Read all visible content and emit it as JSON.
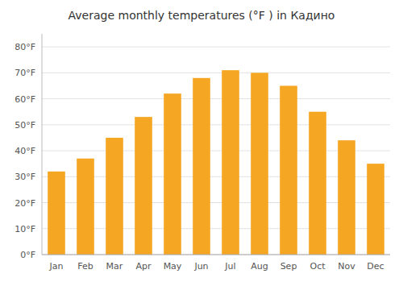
{
  "chart_data": {
    "type": "bar",
    "title": "Average monthly temperatures (°F ) in Кадино",
    "categories": [
      "Jan",
      "Feb",
      "Mar",
      "Apr",
      "May",
      "Jun",
      "Jul",
      "Aug",
      "Sep",
      "Oct",
      "Nov",
      "Dec"
    ],
    "values": [
      32,
      37,
      45,
      53,
      62,
      68,
      71,
      70,
      65,
      55,
      44,
      35
    ],
    "color": "#F5A623",
    "ylim": [
      0,
      85
    ],
    "yticks": [
      {
        "value": 0,
        "label": "0°F"
      },
      {
        "value": 10,
        "label": "10°F"
      },
      {
        "value": 20,
        "label": "20°F"
      },
      {
        "value": 30,
        "label": "30°F"
      },
      {
        "value": 40,
        "label": "40°F"
      },
      {
        "value": 50,
        "label": "50°F"
      },
      {
        "value": 60,
        "label": "60°F"
      },
      {
        "value": 70,
        "label": "70°F"
      },
      {
        "value": 80,
        "label": "80°F"
      }
    ],
    "grid": true
  }
}
